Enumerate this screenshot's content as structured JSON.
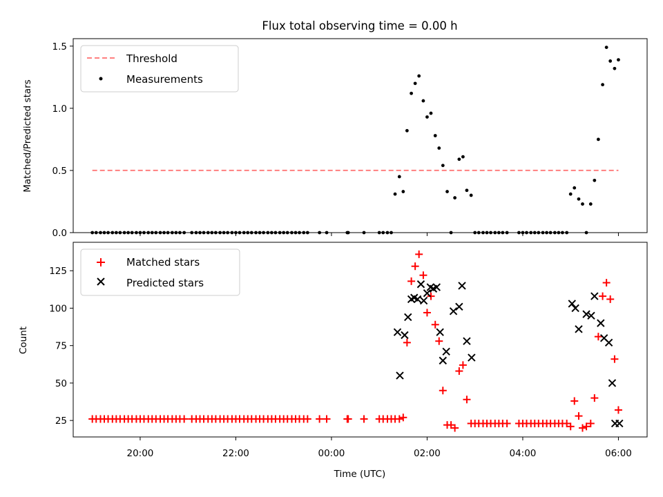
{
  "chart_data": {
    "title": "Flux total observing time = 0.00 h",
    "xlabel": "Time (UTC)",
    "x_unit": "hours since 00:00 UTC (negative = previous day)",
    "xlim": [
      -5.4,
      6.6
    ],
    "xticks": [
      {
        "value": -4,
        "label": "20:00"
      },
      {
        "value": -2,
        "label": "22:00"
      },
      {
        "value": 0,
        "label": "00:00"
      },
      {
        "value": 2,
        "label": "02:00"
      },
      {
        "value": 4,
        "label": "04:00"
      },
      {
        "value": 6,
        "label": "06:00"
      }
    ],
    "panels": [
      {
        "type": "scatter",
        "ylabel": "Matched/Predicted stars",
        "ylim": [
          0,
          1.56
        ],
        "yticks": [
          0.0,
          0.5,
          1.0,
          1.5
        ],
        "ytick_labels": [
          "0.0",
          "0.5",
          "1.0",
          "1.5"
        ],
        "legend_position": "top-left",
        "threshold": {
          "name": "Threshold",
          "value": 0.5,
          "x_range": [
            -5.0,
            6.0
          ],
          "color": "#ff7f7f"
        },
        "series": [
          {
            "name": "Measurements",
            "marker": "dot",
            "color": "#000000",
            "x": [
              -5.0,
              -4.92,
              -4.83,
              -4.75,
              -4.67,
              -4.58,
              -4.5,
              -4.42,
              -4.33,
              -4.25,
              -4.17,
              -4.08,
              -4.0,
              -3.92,
              -3.83,
              -3.75,
              -3.67,
              -3.58,
              -3.5,
              -3.42,
              -3.33,
              -3.25,
              -3.17,
              -3.08,
              -2.92,
              -2.83,
              -2.75,
              -2.67,
              -2.58,
              -2.5,
              -2.42,
              -2.33,
              -2.25,
              -2.17,
              -2.08,
              -2.0,
              -1.92,
              -1.83,
              -1.75,
              -1.67,
              -1.58,
              -1.5,
              -1.42,
              -1.33,
              -1.25,
              -1.17,
              -1.08,
              -1.0,
              -0.92,
              -0.83,
              -0.75,
              -0.67,
              -0.58,
              -0.5,
              -0.25,
              -0.1,
              0.33,
              0.35,
              0.68,
              1.0,
              1.08,
              1.17,
              1.25,
              1.33,
              1.42,
              1.5,
              1.58,
              1.67,
              1.75,
              1.83,
              1.92,
              2.0,
              2.08,
              2.17,
              2.25,
              2.33,
              2.42,
              2.5,
              2.58,
              2.67,
              2.75,
              2.83,
              2.92,
              3.0,
              3.08,
              3.17,
              3.25,
              3.33,
              3.42,
              3.5,
              3.58,
              3.67,
              3.92,
              4.0,
              4.08,
              4.17,
              4.25,
              4.33,
              4.42,
              4.5,
              4.58,
              4.67,
              4.75,
              4.83,
              4.92,
              5.0,
              5.08,
              5.17,
              5.25,
              5.33,
              5.42,
              5.5,
              5.58,
              5.67,
              5.75,
              5.83,
              5.92,
              6.0
            ],
            "y": [
              0,
              0,
              0,
              0,
              0,
              0,
              0,
              0,
              0,
              0,
              0,
              0,
              0,
              0,
              0,
              0,
              0,
              0,
              0,
              0,
              0,
              0,
              0,
              0,
              0,
              0,
              0,
              0,
              0,
              0,
              0,
              0,
              0,
              0,
              0,
              0,
              0,
              0,
              0,
              0,
              0,
              0,
              0,
              0,
              0,
              0,
              0,
              0,
              0,
              0,
              0,
              0,
              0,
              0,
              0,
              0,
              0,
              0,
              0,
              0,
              0,
              0,
              0,
              0.31,
              0.45,
              0.33,
              0.82,
              1.12,
              1.2,
              1.26,
              1.06,
              0.93,
              0.96,
              0.78,
              0.68,
              0.54,
              0.33,
              0,
              0.28,
              0.59,
              0.61,
              0.34,
              0.3,
              0,
              0,
              0,
              0,
              0,
              0,
              0,
              0,
              0,
              0,
              0,
              0,
              0,
              0,
              0,
              0,
              0,
              0,
              0,
              0,
              0,
              0,
              0.31,
              0.36,
              0.27,
              0.23,
              0,
              0.23,
              0.42,
              0.75,
              1.19,
              1.49,
              1.38,
              1.32,
              1.39
            ]
          }
        ]
      },
      {
        "type": "scatter",
        "ylabel": "Count",
        "ylim": [
          14,
          144
        ],
        "yticks": [
          25,
          50,
          75,
          100,
          125
        ],
        "ytick_labels": [
          "25",
          "50",
          "75",
          "100",
          "125"
        ],
        "legend_position": "top-left",
        "series": [
          {
            "name": "Matched stars",
            "marker": "plus",
            "color": "#ff0000",
            "x": [
              -5.0,
              -4.92,
              -4.83,
              -4.75,
              -4.67,
              -4.58,
              -4.5,
              -4.42,
              -4.33,
              -4.25,
              -4.17,
              -4.08,
              -4.0,
              -3.92,
              -3.83,
              -3.75,
              -3.67,
              -3.58,
              -3.5,
              -3.42,
              -3.33,
              -3.25,
              -3.17,
              -3.08,
              -2.92,
              -2.83,
              -2.75,
              -2.67,
              -2.58,
              -2.5,
              -2.42,
              -2.33,
              -2.25,
              -2.17,
              -2.08,
              -2.0,
              -1.92,
              -1.83,
              -1.75,
              -1.67,
              -1.58,
              -1.5,
              -1.42,
              -1.33,
              -1.25,
              -1.17,
              -1.08,
              -1.0,
              -0.92,
              -0.83,
              -0.75,
              -0.67,
              -0.58,
              -0.5,
              -0.25,
              -0.1,
              0.33,
              0.35,
              0.68,
              1.0,
              1.08,
              1.17,
              1.25,
              1.33,
              1.42,
              1.5,
              1.58,
              1.67,
              1.75,
              1.83,
              1.92,
              2.0,
              2.08,
              2.17,
              2.25,
              2.33,
              2.42,
              2.5,
              2.58,
              2.67,
              2.75,
              2.83,
              2.92,
              3.0,
              3.08,
              3.17,
              3.25,
              3.33,
              3.42,
              3.5,
              3.58,
              3.67,
              3.92,
              4.0,
              4.08,
              4.17,
              4.25,
              4.33,
              4.42,
              4.5,
              4.58,
              4.67,
              4.75,
              4.83,
              4.92,
              5.0,
              5.08,
              5.17,
              5.25,
              5.33,
              5.42,
              5.5,
              5.58,
              5.67,
              5.75,
              5.83,
              5.92,
              6.0
            ],
            "y": [
              26,
              26,
              26,
              26,
              26,
              26,
              26,
              26,
              26,
              26,
              26,
              26,
              26,
              26,
              26,
              26,
              26,
              26,
              26,
              26,
              26,
              26,
              26,
              26,
              26,
              26,
              26,
              26,
              26,
              26,
              26,
              26,
              26,
              26,
              26,
              26,
              26,
              26,
              26,
              26,
              26,
              26,
              26,
              26,
              26,
              26,
              26,
              26,
              26,
              26,
              26,
              26,
              26,
              26,
              26,
              26,
              26,
              26,
              26,
              26,
              26,
              26,
              26,
              26,
              26,
              27,
              77,
              118,
              128,
              136,
              122,
              97,
              108,
              89,
              78,
              45,
              22,
              22,
              20,
              58,
              62,
              39,
              23,
              23,
              23,
              23,
              23,
              23,
              23,
              23,
              23,
              23,
              23,
              23,
              23,
              23,
              23,
              23,
              23,
              23,
              23,
              23,
              23,
              23,
              23,
              21,
              38,
              28,
              20,
              21,
              23,
              40,
              81,
              108,
              117,
              106,
              66,
              32
            ]
          },
          {
            "name": "Predicted stars",
            "marker": "x",
            "color": "#000000",
            "x": [
              1.38,
              1.43,
              1.53,
              1.6,
              1.67,
              1.73,
              1.8,
              1.87,
              1.93,
              2.0,
              2.07,
              2.13,
              2.2,
              2.27,
              2.33,
              2.4,
              2.55,
              2.67,
              2.73,
              2.83,
              2.93,
              5.03,
              5.1,
              5.17,
              5.33,
              5.43,
              5.5,
              5.63,
              5.7,
              5.8,
              5.87,
              5.93,
              6.02
            ],
            "y": [
              84,
              55,
              82,
              94,
              106,
              107,
              106,
              116,
              105,
              110,
              114,
              113,
              114,
              84,
              65,
              71,
              98,
              101,
              115,
              78,
              67,
              103,
              100,
              86,
              96,
              95,
              108,
              90,
              80,
              77,
              50,
              23,
              23
            ]
          }
        ]
      }
    ]
  }
}
